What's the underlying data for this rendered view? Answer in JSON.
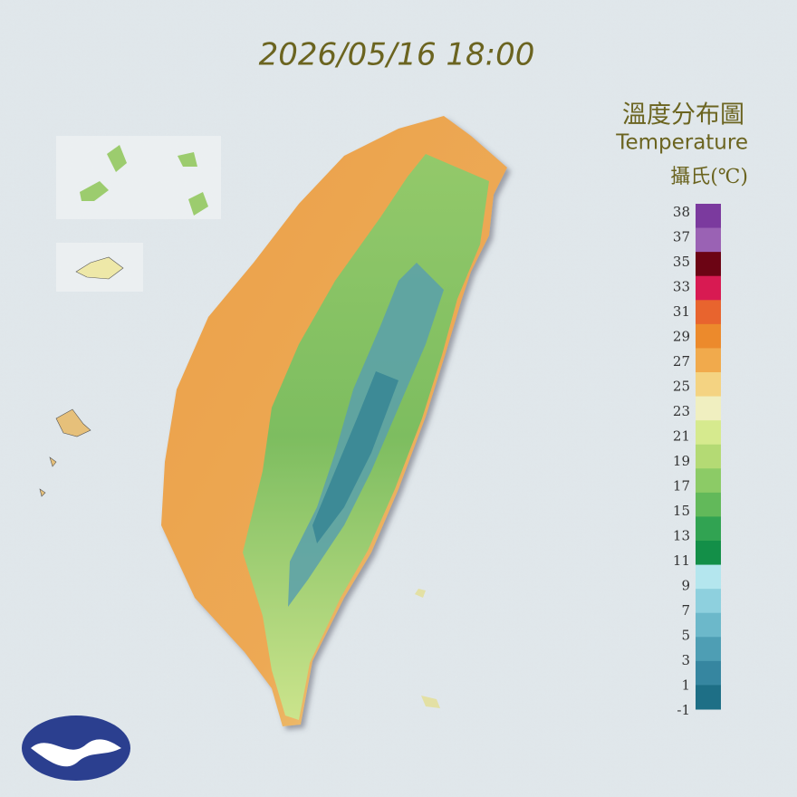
{
  "header": {
    "timestamp": "2026/05/16 18:00"
  },
  "legend": {
    "title": "溫度分布圖",
    "subtitle": "Temperature",
    "unit": "攝氏(℃)",
    "labels": [
      "38",
      "37",
      "35",
      "33",
      "31",
      "29",
      "27",
      "25",
      "23",
      "21",
      "19",
      "17",
      "15",
      "13",
      "11",
      "9",
      "7",
      "5",
      "3",
      "1",
      "-1"
    ],
    "colors": [
      "#7b3a9e",
      "#9a62b4",
      "#6c0414",
      "#d81a52",
      "#e8642e",
      "#ec8a2c",
      "#f1aa4c",
      "#f4d382",
      "#f0efc0",
      "#d6ea8e",
      "#b4da74",
      "#8ccb66",
      "#62b95a",
      "#31a352",
      "#138f48",
      "#b4e6ee",
      "#8ed0de",
      "#6cb8ca",
      "#4e9eb4",
      "#3686a0",
      "#1e6f86"
    ]
  }
}
